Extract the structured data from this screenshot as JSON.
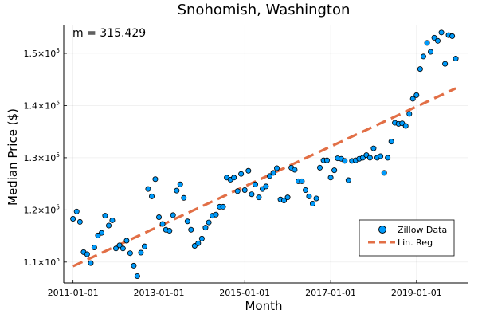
{
  "chart_data": {
    "type": "scatter",
    "title": "Snohomish, Washington",
    "xlabel": "Month",
    "ylabel": "Median Price ($)",
    "annotation": "m = 315.429",
    "xlim": [
      "2010-10-14",
      "2020-03-18"
    ],
    "ylim": [
      106000,
      155500
    ],
    "grid": true,
    "legend_position": "bottom-right",
    "x_ticks": [
      "2011-01-01",
      "2013-01-01",
      "2015-01-01",
      "2017-01-01",
      "2019-01-01"
    ],
    "y_ticks": [
      {
        "value": 110000,
        "mantissa": "1.1",
        "exponent": "5"
      },
      {
        "value": 120000,
        "mantissa": "1.2",
        "exponent": "5"
      },
      {
        "value": 130000,
        "mantissa": "1.3",
        "exponent": "5"
      },
      {
        "value": 140000,
        "mantissa": "1.4",
        "exponent": "5"
      },
      {
        "value": 150000,
        "mantissa": "1.5",
        "exponent": "5"
      }
    ],
    "y_tick_base": "×10",
    "series": [
      {
        "name": "Zillow Data",
        "kind": "scatter",
        "color": "#009AFA",
        "start_month": "2011-01",
        "values": [
          118300,
          119700,
          117700,
          111900,
          111500,
          109800,
          112800,
          115100,
          115600,
          118900,
          117000,
          118000,
          112600,
          113200,
          112600,
          114100,
          111700,
          109300,
          107300,
          111800,
          113000,
          124000,
          122600,
          125900,
          118600,
          117300,
          116200,
          116000,
          119000,
          123700,
          124900,
          122300,
          117800,
          116200,
          113100,
          113600,
          114500,
          116600,
          117600,
          118900,
          119100,
          120600,
          120600,
          126200,
          125800,
          126200,
          123600,
          126900,
          123800,
          127500,
          123000,
          124900,
          122400,
          124000,
          124500,
          126500,
          127100,
          128000,
          122000,
          121800,
          122400,
          128100,
          127700,
          125500,
          125500,
          123800,
          122600,
          121200,
          122200,
          128100,
          129500,
          129500,
          126200,
          127600,
          129900,
          129800,
          129400,
          125700,
          129400,
          129500,
          129800,
          130000,
          130500,
          130000,
          131800,
          130000,
          130300,
          127100,
          130000,
          133100,
          136700,
          136500,
          136600,
          136100,
          138400,
          141300,
          142000,
          147000,
          149400,
          152000,
          150300,
          153000,
          152400,
          154000,
          148000,
          153500,
          153300,
          149000
        ]
      },
      {
        "name": "Lin. Reg",
        "kind": "line",
        "color": "#E26F46",
        "dashed": true,
        "from": {
          "x": "2011-01-01",
          "y": 109200
        },
        "to": {
          "x": "2019-12-01",
          "y": 143300
        }
      }
    ]
  }
}
